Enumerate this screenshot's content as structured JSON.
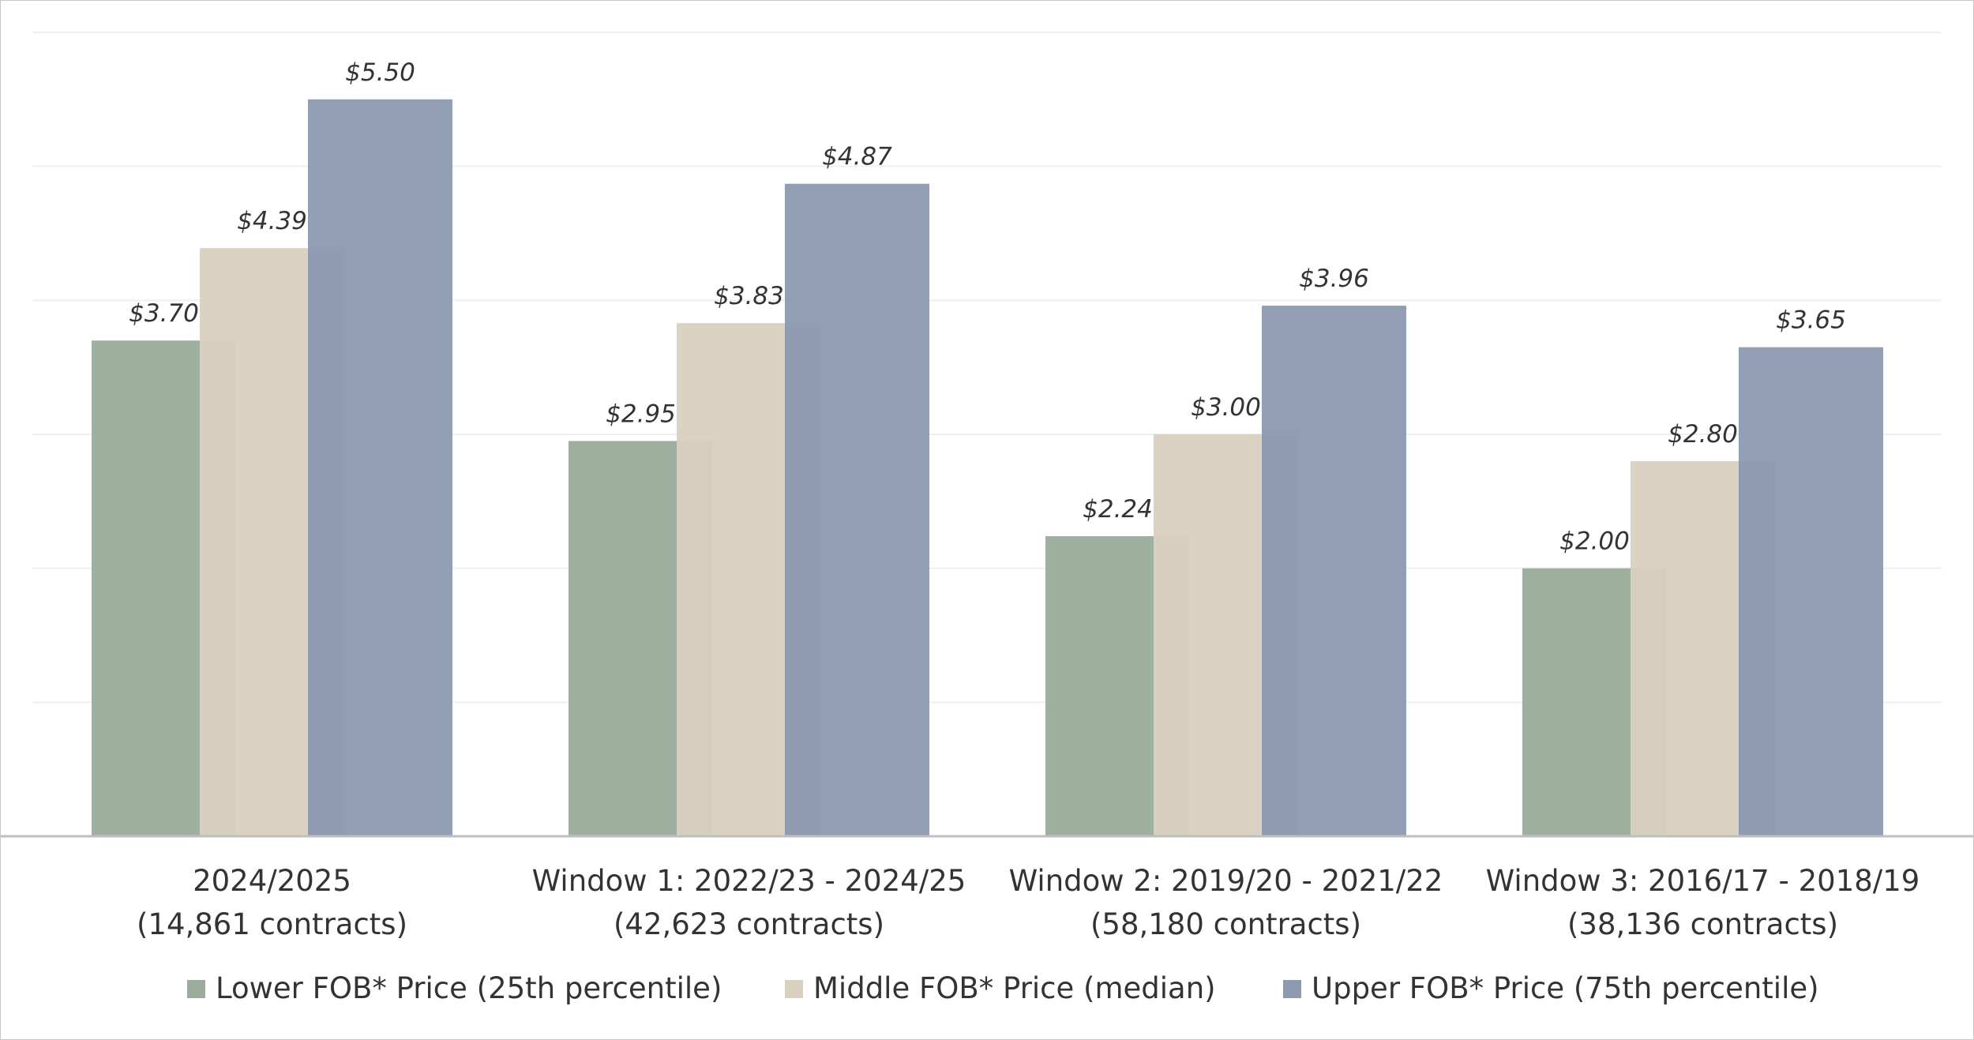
{
  "chart_data": {
    "type": "bar",
    "title": "",
    "xlabel": "",
    "ylabel": "",
    "ylim": [
      0,
      6
    ],
    "grid": true,
    "legend_position": "bottom",
    "categories": [
      {
        "line1": "2024/2025",
        "line2": "(14,861 contracts)"
      },
      {
        "line1": "Window 1: 2022/23 - 2024/25",
        "line2": "(42,623 contracts)"
      },
      {
        "line1": "Window 2: 2019/20 - 2021/22",
        "line2": "(58,180 contracts)"
      },
      {
        "line1": "Window 3: 2016/17 - 2018/19",
        "line2": "(38,136 contracts)"
      }
    ],
    "series": [
      {
        "name": "Lower FOB* Price (25th percentile)",
        "color": "#9aac9b",
        "values": [
          3.7,
          2.95,
          2.24,
          2.0
        ],
        "labels": [
          "$3.70",
          "$2.95",
          "$2.24",
          "$2.00"
        ]
      },
      {
        "name": "Middle FOB* Price (median)",
        "color": "#d9d0c0",
        "values": [
          4.39,
          3.83,
          3.0,
          2.8
        ],
        "labels": [
          "$4.39",
          "$3.83",
          "$3.00",
          "$2.80"
        ]
      },
      {
        "name": "Upper FOB* Price (75th percentile)",
        "color": "#8c99b0",
        "values": [
          5.5,
          4.87,
          3.96,
          3.65
        ],
        "labels": [
          "$5.50",
          "$4.87",
          "$3.96",
          "$3.65"
        ]
      }
    ]
  }
}
